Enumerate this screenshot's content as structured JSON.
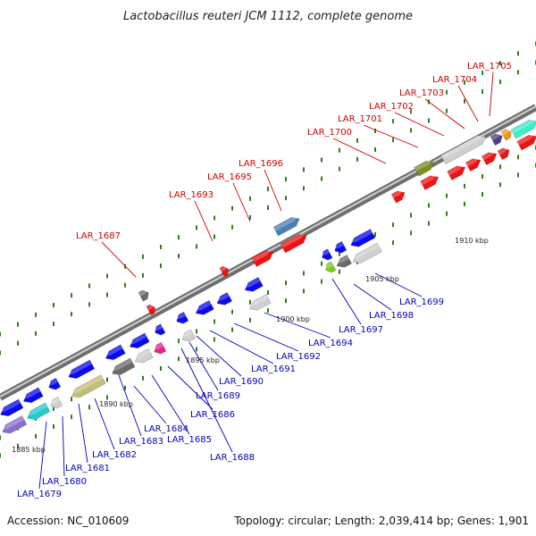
{
  "title": "Lactobacillus reuteri JCM 1112, complete genome",
  "footer": {
    "accession": "Accession: NC_010609",
    "summary": "Topology: circular; Length: 2,039,414 bp; Genes: 1,901"
  },
  "colors": {
    "backbone": "#8a8a8a",
    "forward_label": "#cc0000",
    "reverse_label": "#0000bb",
    "dot_green": "#2e7d1a"
  },
  "scale_ticks": [
    "1885 kbp",
    "1890 kbp",
    "1895 kbp",
    "1900 kbp",
    "1905 kbp",
    "1910 kbp"
  ],
  "forward_genes": [
    "LAR_1687",
    "LAR_1693",
    "LAR_1695",
    "LAR_1696",
    "LAR_1700",
    "LAR_1701",
    "LAR_1702",
    "LAR_1703",
    "LAR_1704",
    "LAR_1705"
  ],
  "reverse_genes": [
    "LAR_1679",
    "LAR_1680",
    "LAR_1681",
    "LAR_1682",
    "LAR_1683",
    "LAR_1684",
    "LAR_1685",
    "LAR_1686",
    "LAR_1688",
    "LAR_1689",
    "LAR_1690",
    "LAR_1691",
    "LAR_1692",
    "LAR_1694",
    "LAR_1697",
    "LAR_1698",
    "LAR_1699"
  ]
}
